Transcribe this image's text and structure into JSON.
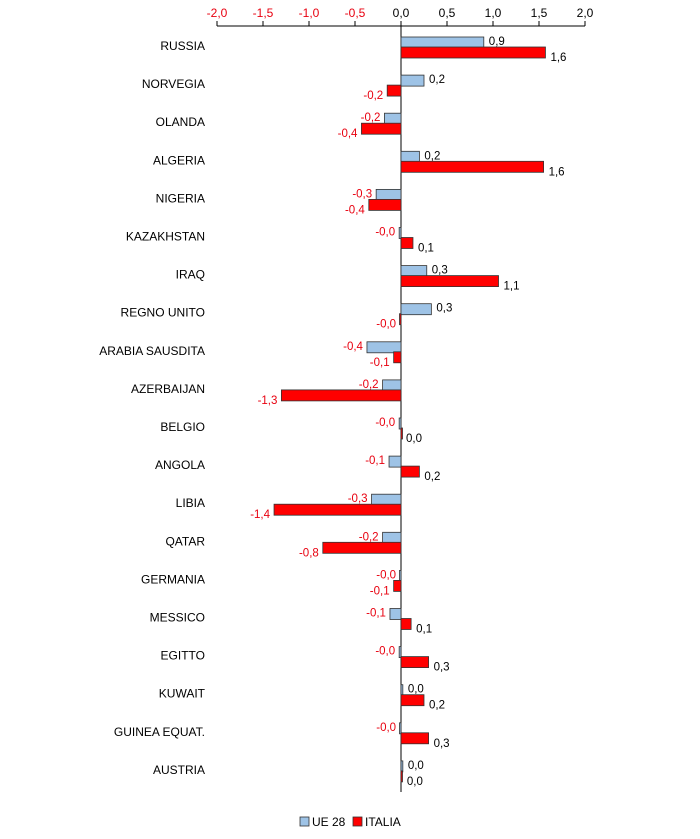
{
  "chart_data": {
    "type": "bar",
    "orientation": "horizontal",
    "categories": [
      "RUSSIA",
      "NORVEGIA",
      "OLANDA",
      "ALGERIA",
      "NIGERIA",
      "KAZAKHSTAN",
      "IRAQ",
      "REGNO UNITO",
      "ARABIA SAUSDITA",
      "AZERBAIJAN",
      "BELGIO",
      "ANGOLA",
      "LIBIA",
      "QATAR",
      "GERMANIA",
      "MESSICO",
      "EGITTO",
      "KUWAIT",
      "GUINEA EQUAT.",
      "AUSTRIA"
    ],
    "series": [
      {
        "name": "UE 28",
        "color": "#9ec3e6",
        "values": [
          0.9,
          0.25,
          -0.18,
          0.2,
          -0.27,
          -0.02,
          0.28,
          0.33,
          -0.37,
          -0.2,
          -0.02,
          -0.13,
          -0.32,
          -0.2,
          -0.01,
          -0.12,
          -0.02,
          0.02,
          -0.01,
          0.02
        ],
        "labels": [
          "0,9",
          "0,2",
          "-0,2",
          "0,2",
          "-0,3",
          "-0,0",
          "0,3",
          "0,3",
          "-0,4",
          "-0,2",
          "-0,0",
          "-0,1",
          "-0,3",
          "-0,2",
          "-0,0",
          "-0,1",
          "-0,0",
          "0,0",
          "-0,0",
          "0,0"
        ]
      },
      {
        "name": "ITALIA",
        "color": "#ff0000",
        "values": [
          1.57,
          -0.15,
          -0.43,
          1.55,
          -0.35,
          0.13,
          1.06,
          -0.01,
          -0.08,
          -1.3,
          0.0,
          0.2,
          -1.38,
          -0.85,
          -0.08,
          0.11,
          0.3,
          0.25,
          0.3,
          0.01
        ],
        "labels": [
          "1,6",
          "-0,2",
          "-0,4",
          "1,6",
          "-0,4",
          "0,1",
          "1,1",
          "-0,0",
          "-0,1",
          "-1,3",
          "0,0",
          "0,2",
          "-1,4",
          "-0,8",
          "-0,1",
          "0,1",
          "0,3",
          "0,2",
          "0,3",
          "0,0"
        ]
      }
    ],
    "xlim": [
      -2.0,
      2.0
    ],
    "ticks": [
      -2.0,
      -1.5,
      -1.0,
      -0.5,
      0.0,
      0.5,
      1.0,
      1.5,
      2.0
    ],
    "tick_labels": [
      "-2,0",
      "-1,5",
      "-1,0",
      "-0,5",
      "0,0",
      "0,5",
      "1,0",
      "1,5",
      "2,0"
    ],
    "axis_position": "top",
    "legend_position": "bottom-center",
    "grid": false,
    "colors": {
      "negative_label": "#e8000f",
      "positive_label": "#000000",
      "bar_stroke": "#333333"
    }
  }
}
